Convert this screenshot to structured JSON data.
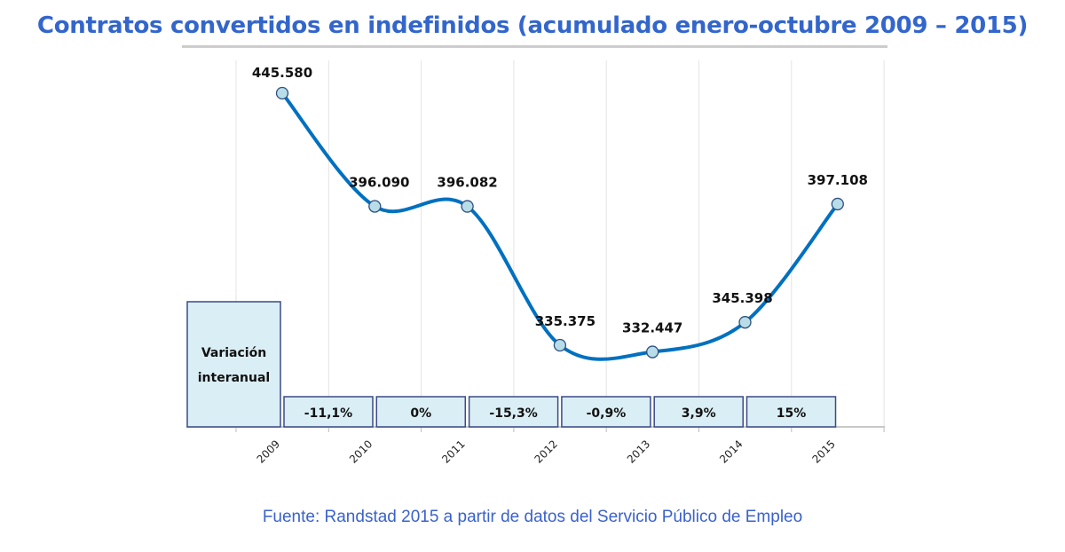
{
  "chart_data": {
    "type": "line",
    "title": "Contratos convertidos en indefinidos (acumulado enero-octubre 2009 – 2015)",
    "categories": [
      "2009",
      "2010",
      "2011",
      "2012",
      "2013",
      "2014",
      "2015"
    ],
    "values": [
      445580,
      396090,
      396082,
      335375,
      332447,
      345398,
      397108
    ],
    "data_labels": [
      "445.580",
      "396.090",
      "396.082",
      "335.375",
      "332.447",
      "345.398",
      "397.108"
    ],
    "variation_label": "Variación interanual",
    "variation_label_lines": [
      "Variación",
      "interanual"
    ],
    "variations": [
      "-11,1%",
      "0%",
      "-15,3%",
      "-0,9%",
      "3,9%",
      "15%"
    ],
    "grid": "vertical",
    "line_color": "#0070c0",
    "marker_color": "#b7dde8",
    "box_fill": "#daeef5",
    "title_color": "#3366cc",
    "source": "Fuente: Randstad 2015 a partir de datos del Servicio Público de Empleo"
  }
}
